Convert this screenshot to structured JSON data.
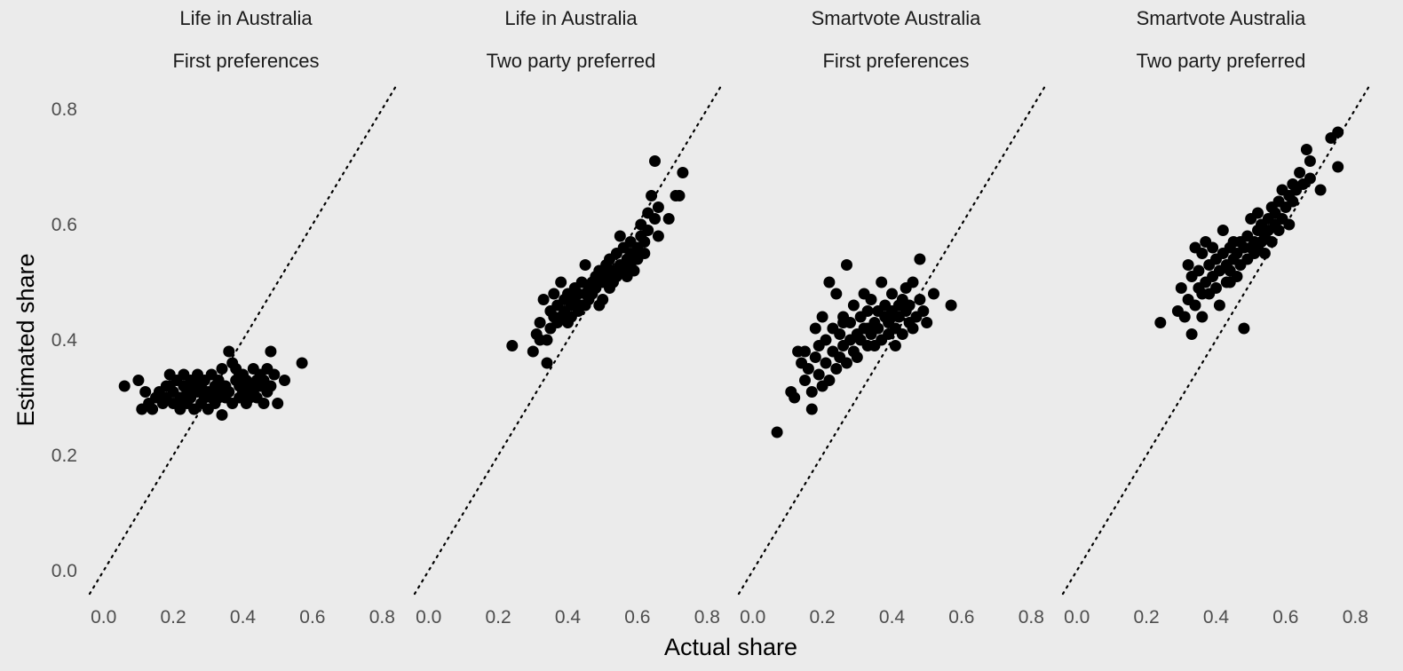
{
  "chart_data": {
    "type": "scatter",
    "xlabel": "Actual share",
    "ylabel": "Estimated share",
    "xlim": [
      -0.04,
      0.84
    ],
    "ylim": [
      -0.04,
      0.84
    ],
    "x_ticks": [
      0.0,
      0.2,
      0.4,
      0.6,
      0.8
    ],
    "y_ticks": [
      0.0,
      0.2,
      0.4,
      0.6,
      0.8
    ],
    "x_tick_labels": [
      "0.0",
      "0.2",
      "0.4",
      "0.6",
      "0.8"
    ],
    "y_tick_labels": [
      "0.0",
      "0.2",
      "0.4",
      "0.6",
      "0.8"
    ],
    "grid": false,
    "reference_line": "y = x (dotted)",
    "point_color": "#000000",
    "background_color": "#ebebeb",
    "panels": [
      {
        "title_line1": "Life in Australia",
        "title_line2": "First preferences",
        "points": [
          [
            0.06,
            0.32
          ],
          [
            0.1,
            0.33
          ],
          [
            0.11,
            0.28
          ],
          [
            0.12,
            0.31
          ],
          [
            0.13,
            0.29
          ],
          [
            0.14,
            0.28
          ],
          [
            0.15,
            0.3
          ],
          [
            0.16,
            0.31
          ],
          [
            0.17,
            0.29
          ],
          [
            0.18,
            0.32
          ],
          [
            0.18,
            0.3
          ],
          [
            0.19,
            0.34
          ],
          [
            0.2,
            0.29
          ],
          [
            0.2,
            0.31
          ],
          [
            0.21,
            0.33
          ],
          [
            0.22,
            0.3
          ],
          [
            0.22,
            0.28
          ],
          [
            0.23,
            0.32
          ],
          [
            0.23,
            0.34
          ],
          [
            0.24,
            0.31
          ],
          [
            0.24,
            0.29
          ],
          [
            0.25,
            0.33
          ],
          [
            0.25,
            0.3
          ],
          [
            0.26,
            0.32
          ],
          [
            0.26,
            0.28
          ],
          [
            0.27,
            0.31
          ],
          [
            0.27,
            0.34
          ],
          [
            0.28,
            0.29
          ],
          [
            0.28,
            0.32
          ],
          [
            0.29,
            0.3
          ],
          [
            0.29,
            0.33
          ],
          [
            0.3,
            0.31
          ],
          [
            0.3,
            0.28
          ],
          [
            0.31,
            0.34
          ],
          [
            0.31,
            0.3
          ],
          [
            0.32,
            0.32
          ],
          [
            0.32,
            0.29
          ],
          [
            0.33,
            0.33
          ],
          [
            0.33,
            0.31
          ],
          [
            0.34,
            0.27
          ],
          [
            0.34,
            0.35
          ],
          [
            0.35,
            0.3
          ],
          [
            0.35,
            0.32
          ],
          [
            0.36,
            0.38
          ],
          [
            0.36,
            0.31
          ],
          [
            0.37,
            0.36
          ],
          [
            0.37,
            0.29
          ],
          [
            0.38,
            0.33
          ],
          [
            0.38,
            0.35
          ],
          [
            0.39,
            0.3
          ],
          [
            0.39,
            0.32
          ],
          [
            0.4,
            0.31
          ],
          [
            0.4,
            0.34
          ],
          [
            0.41,
            0.33
          ],
          [
            0.41,
            0.29
          ],
          [
            0.42,
            0.32
          ],
          [
            0.42,
            0.3
          ],
          [
            0.43,
            0.35
          ],
          [
            0.43,
            0.31
          ],
          [
            0.44,
            0.33
          ],
          [
            0.44,
            0.3
          ],
          [
            0.45,
            0.34
          ],
          [
            0.45,
            0.32
          ],
          [
            0.46,
            0.29
          ],
          [
            0.46,
            0.33
          ],
          [
            0.47,
            0.31
          ],
          [
            0.47,
            0.35
          ],
          [
            0.48,
            0.32
          ],
          [
            0.48,
            0.38
          ],
          [
            0.49,
            0.34
          ],
          [
            0.5,
            0.29
          ],
          [
            0.52,
            0.33
          ],
          [
            0.57,
            0.36
          ],
          [
            0.19,
            0.32
          ],
          [
            0.21,
            0.29
          ],
          [
            0.27,
            0.33
          ],
          [
            0.33,
            0.3
          ],
          [
            0.39,
            0.34
          ]
        ]
      },
      {
        "title_line1": "Life in Australia",
        "title_line2": "Two party preferred",
        "points": [
          [
            0.24,
            0.39
          ],
          [
            0.3,
            0.38
          ],
          [
            0.31,
            0.41
          ],
          [
            0.32,
            0.4
          ],
          [
            0.32,
            0.43
          ],
          [
            0.33,
            0.47
          ],
          [
            0.34,
            0.36
          ],
          [
            0.34,
            0.4
          ],
          [
            0.35,
            0.42
          ],
          [
            0.35,
            0.45
          ],
          [
            0.36,
            0.44
          ],
          [
            0.36,
            0.48
          ],
          [
            0.37,
            0.43
          ],
          [
            0.37,
            0.46
          ],
          [
            0.38,
            0.5
          ],
          [
            0.38,
            0.44
          ],
          [
            0.39,
            0.47
          ],
          [
            0.39,
            0.45
          ],
          [
            0.4,
            0.43
          ],
          [
            0.4,
            0.48
          ],
          [
            0.41,
            0.46
          ],
          [
            0.41,
            0.44
          ],
          [
            0.42,
            0.49
          ],
          [
            0.42,
            0.47
          ],
          [
            0.43,
            0.45
          ],
          [
            0.43,
            0.48
          ],
          [
            0.44,
            0.46
          ],
          [
            0.44,
            0.5
          ],
          [
            0.45,
            0.48
          ],
          [
            0.45,
            0.53
          ],
          [
            0.46,
            0.47
          ],
          [
            0.46,
            0.49
          ],
          [
            0.47,
            0.5
          ],
          [
            0.47,
            0.48
          ],
          [
            0.48,
            0.51
          ],
          [
            0.48,
            0.49
          ],
          [
            0.49,
            0.46
          ],
          [
            0.49,
            0.52
          ],
          [
            0.5,
            0.5
          ],
          [
            0.5,
            0.47
          ],
          [
            0.51,
            0.53
          ],
          [
            0.51,
            0.51
          ],
          [
            0.52,
            0.49
          ],
          [
            0.52,
            0.54
          ],
          [
            0.53,
            0.52
          ],
          [
            0.53,
            0.5
          ],
          [
            0.54,
            0.55
          ],
          [
            0.54,
            0.51
          ],
          [
            0.55,
            0.53
          ],
          [
            0.55,
            0.58
          ],
          [
            0.56,
            0.52
          ],
          [
            0.56,
            0.56
          ],
          [
            0.57,
            0.54
          ],
          [
            0.57,
            0.51
          ],
          [
            0.58,
            0.57
          ],
          [
            0.58,
            0.53
          ],
          [
            0.59,
            0.55
          ],
          [
            0.59,
            0.52
          ],
          [
            0.6,
            0.56
          ],
          [
            0.6,
            0.54
          ],
          [
            0.61,
            0.58
          ],
          [
            0.61,
            0.6
          ],
          [
            0.62,
            0.57
          ],
          [
            0.62,
            0.55
          ],
          [
            0.63,
            0.62
          ],
          [
            0.63,
            0.59
          ],
          [
            0.64,
            0.65
          ],
          [
            0.65,
            0.61
          ],
          [
            0.65,
            0.71
          ],
          [
            0.66,
            0.58
          ],
          [
            0.66,
            0.63
          ],
          [
            0.69,
            0.61
          ],
          [
            0.71,
            0.65
          ],
          [
            0.72,
            0.65
          ],
          [
            0.73,
            0.69
          ],
          [
            0.45,
            0.46
          ],
          [
            0.52,
            0.52
          ],
          [
            0.58,
            0.55
          ]
        ]
      },
      {
        "title_line1": "Smartvote Australia",
        "title_line2": "First preferences",
        "points": [
          [
            0.07,
            0.24
          ],
          [
            0.11,
            0.31
          ],
          [
            0.12,
            0.3
          ],
          [
            0.13,
            0.38
          ],
          [
            0.14,
            0.36
          ],
          [
            0.15,
            0.38
          ],
          [
            0.15,
            0.33
          ],
          [
            0.16,
            0.35
          ],
          [
            0.17,
            0.28
          ],
          [
            0.17,
            0.31
          ],
          [
            0.18,
            0.42
          ],
          [
            0.18,
            0.37
          ],
          [
            0.19,
            0.34
          ],
          [
            0.19,
            0.39
          ],
          [
            0.2,
            0.32
          ],
          [
            0.2,
            0.44
          ],
          [
            0.21,
            0.36
          ],
          [
            0.21,
            0.4
          ],
          [
            0.22,
            0.33
          ],
          [
            0.22,
            0.5
          ],
          [
            0.23,
            0.38
          ],
          [
            0.23,
            0.42
          ],
          [
            0.24,
            0.35
          ],
          [
            0.24,
            0.48
          ],
          [
            0.25,
            0.37
          ],
          [
            0.25,
            0.41
          ],
          [
            0.26,
            0.39
          ],
          [
            0.26,
            0.44
          ],
          [
            0.27,
            0.36
          ],
          [
            0.27,
            0.53
          ],
          [
            0.28,
            0.4
          ],
          [
            0.28,
            0.43
          ],
          [
            0.29,
            0.38
          ],
          [
            0.29,
            0.46
          ],
          [
            0.3,
            0.41
          ],
          [
            0.3,
            0.37
          ],
          [
            0.31,
            0.44
          ],
          [
            0.31,
            0.4
          ],
          [
            0.32,
            0.48
          ],
          [
            0.32,
            0.42
          ],
          [
            0.33,
            0.39
          ],
          [
            0.33,
            0.45
          ],
          [
            0.34,
            0.41
          ],
          [
            0.34,
            0.47
          ],
          [
            0.35,
            0.43
          ],
          [
            0.35,
            0.39
          ],
          [
            0.36,
            0.45
          ],
          [
            0.36,
            0.42
          ],
          [
            0.37,
            0.5
          ],
          [
            0.37,
            0.4
          ],
          [
            0.38,
            0.44
          ],
          [
            0.38,
            0.46
          ],
          [
            0.39,
            0.41
          ],
          [
            0.39,
            0.43
          ],
          [
            0.4,
            0.48
          ],
          [
            0.4,
            0.45
          ],
          [
            0.41,
            0.42
          ],
          [
            0.41,
            0.39
          ],
          [
            0.42,
            0.46
          ],
          [
            0.42,
            0.44
          ],
          [
            0.43,
            0.47
          ],
          [
            0.43,
            0.41
          ],
          [
            0.44,
            0.45
          ],
          [
            0.44,
            0.49
          ],
          [
            0.45,
            0.43
          ],
          [
            0.45,
            0.46
          ],
          [
            0.46,
            0.5
          ],
          [
            0.46,
            0.42
          ],
          [
            0.47,
            0.44
          ],
          [
            0.48,
            0.47
          ],
          [
            0.48,
            0.54
          ],
          [
            0.49,
            0.45
          ],
          [
            0.5,
            0.43
          ],
          [
            0.52,
            0.48
          ],
          [
            0.57,
            0.46
          ],
          [
            0.26,
            0.43
          ],
          [
            0.33,
            0.42
          ],
          [
            0.4,
            0.44
          ]
        ]
      },
      {
        "title_line1": "Smartvote Australia",
        "title_line2": "Two party preferred",
        "points": [
          [
            0.24,
            0.43
          ],
          [
            0.29,
            0.45
          ],
          [
            0.3,
            0.49
          ],
          [
            0.31,
            0.44
          ],
          [
            0.32,
            0.53
          ],
          [
            0.32,
            0.47
          ],
          [
            0.33,
            0.41
          ],
          [
            0.33,
            0.51
          ],
          [
            0.34,
            0.56
          ],
          [
            0.34,
            0.46
          ],
          [
            0.35,
            0.52
          ],
          [
            0.35,
            0.49
          ],
          [
            0.36,
            0.44
          ],
          [
            0.36,
            0.55
          ],
          [
            0.37,
            0.5
          ],
          [
            0.37,
            0.57
          ],
          [
            0.38,
            0.53
          ],
          [
            0.38,
            0.48
          ],
          [
            0.39,
            0.51
          ],
          [
            0.39,
            0.56
          ],
          [
            0.4,
            0.49
          ],
          [
            0.4,
            0.54
          ],
          [
            0.41,
            0.52
          ],
          [
            0.41,
            0.46
          ],
          [
            0.42,
            0.55
          ],
          [
            0.42,
            0.59
          ],
          [
            0.43,
            0.53
          ],
          [
            0.43,
            0.5
          ],
          [
            0.44,
            0.56
          ],
          [
            0.44,
            0.52
          ],
          [
            0.45,
            0.54
          ],
          [
            0.45,
            0.57
          ],
          [
            0.46,
            0.55
          ],
          [
            0.46,
            0.51
          ],
          [
            0.47,
            0.57
          ],
          [
            0.47,
            0.53
          ],
          [
            0.48,
            0.42
          ],
          [
            0.48,
            0.56
          ],
          [
            0.49,
            0.54
          ],
          [
            0.49,
            0.58
          ],
          [
            0.5,
            0.56
          ],
          [
            0.5,
            0.61
          ],
          [
            0.51,
            0.57
          ],
          [
            0.51,
            0.55
          ],
          [
            0.52,
            0.59
          ],
          [
            0.52,
            0.62
          ],
          [
            0.53,
            0.57
          ],
          [
            0.53,
            0.6
          ],
          [
            0.54,
            0.58
          ],
          [
            0.54,
            0.55
          ],
          [
            0.55,
            0.61
          ],
          [
            0.55,
            0.59
          ],
          [
            0.56,
            0.63
          ],
          [
            0.56,
            0.57
          ],
          [
            0.57,
            0.6
          ],
          [
            0.57,
            0.62
          ],
          [
            0.58,
            0.59
          ],
          [
            0.58,
            0.64
          ],
          [
            0.59,
            0.61
          ],
          [
            0.59,
            0.66
          ],
          [
            0.6,
            0.63
          ],
          [
            0.61,
            0.6
          ],
          [
            0.61,
            0.65
          ],
          [
            0.62,
            0.67
          ],
          [
            0.62,
            0.64
          ],
          [
            0.63,
            0.66
          ],
          [
            0.64,
            0.69
          ],
          [
            0.65,
            0.67
          ],
          [
            0.66,
            0.73
          ],
          [
            0.67,
            0.71
          ],
          [
            0.67,
            0.68
          ],
          [
            0.7,
            0.66
          ],
          [
            0.73,
            0.75
          ],
          [
            0.75,
            0.76
          ],
          [
            0.75,
            0.7
          ],
          [
            0.36,
            0.48
          ],
          [
            0.44,
            0.5
          ],
          [
            0.52,
            0.56
          ]
        ]
      }
    ]
  }
}
